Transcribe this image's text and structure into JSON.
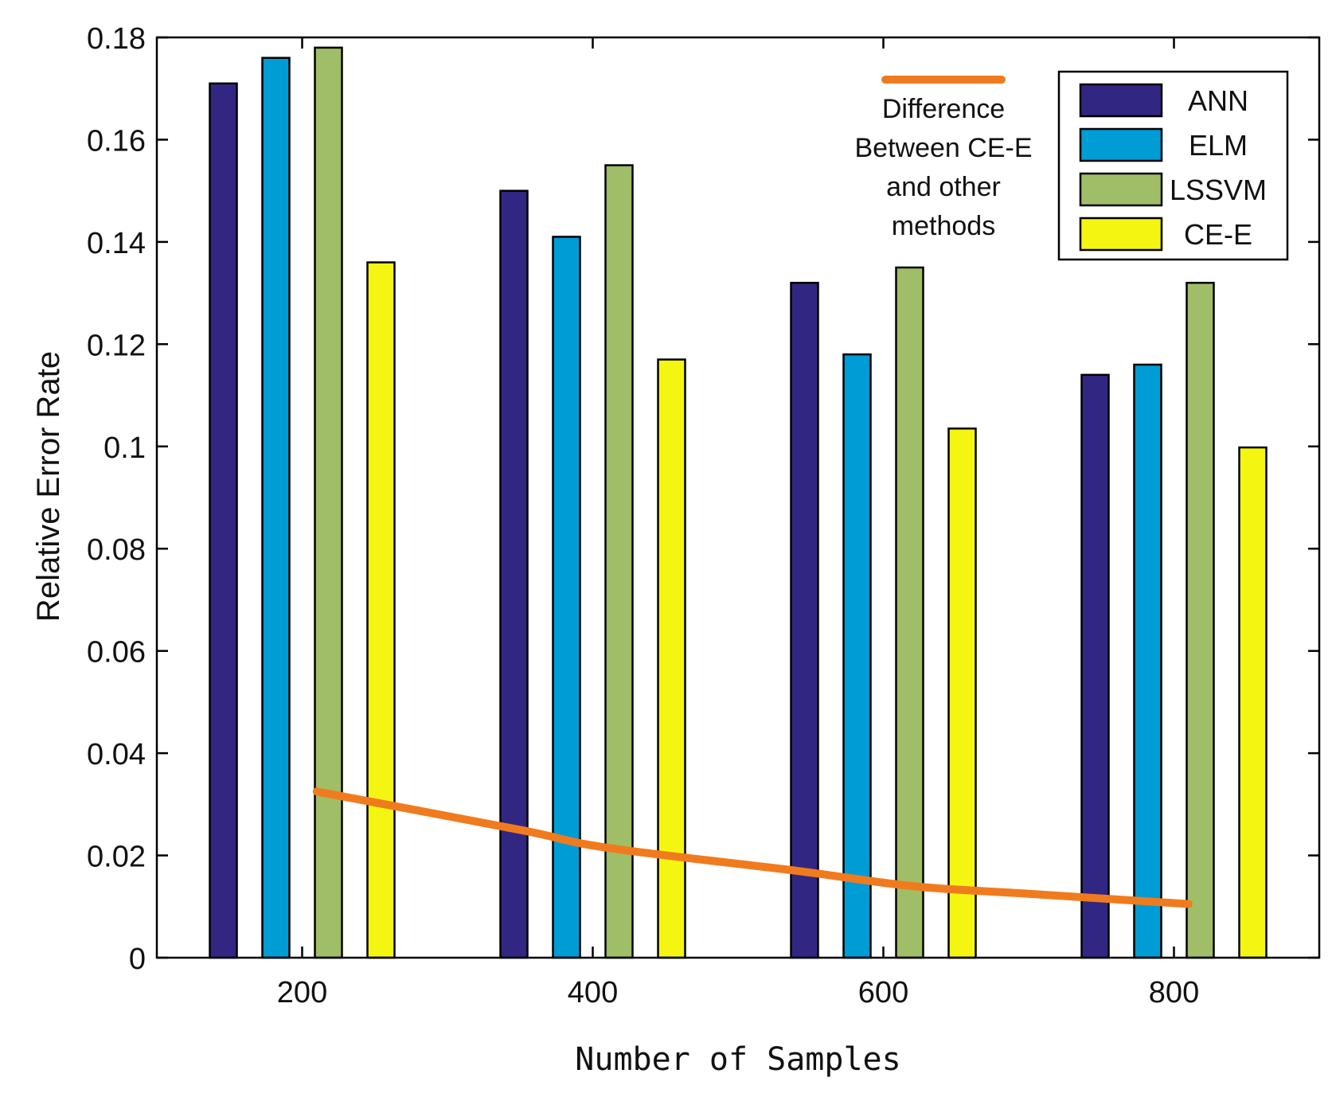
{
  "chart_data": {
    "type": "bar",
    "title": "",
    "xlabel": "Number of Samples",
    "ylabel": "Relative Error Rate",
    "categories": [
      "200",
      "400",
      "600",
      "800"
    ],
    "ylim": [
      0,
      0.18
    ],
    "yticks": [
      0,
      0.02,
      0.04,
      0.06,
      0.08,
      0.1,
      0.12,
      0.14,
      0.16,
      0.18
    ],
    "ytick_labels": [
      "0",
      "0.02",
      "0.04",
      "0.06",
      "0.08",
      "0.1",
      "0.12",
      "0.14",
      "0.16",
      "0.18"
    ],
    "xlim": [
      100,
      900
    ],
    "xticks": [
      200,
      400,
      600,
      800
    ],
    "grid": false,
    "legend_position": "top-right",
    "series": [
      {
        "name": "ANN",
        "color": "#312783",
        "values": [
          0.171,
          0.15,
          0.132,
          0.114
        ]
      },
      {
        "name": "ELM",
        "color": "#009cd5",
        "values": [
          0.176,
          0.141,
          0.118,
          0.116
        ]
      },
      {
        "name": "LSSVM",
        "color": "#9fbe67",
        "values": [
          0.178,
          0.155,
          0.135,
          0.132
        ]
      },
      {
        "name": "CE-E",
        "color": "#f5f512",
        "values": [
          0.136,
          0.117,
          0.1035,
          0.0998
        ]
      }
    ],
    "line_series": {
      "name": "Difference Between CE-E and other methods",
      "color": "#f07b1e",
      "x": [
        210,
        350,
        410,
        540,
        620,
        700,
        810
      ],
      "y": [
        0.0325,
        0.025,
        0.0215,
        0.017,
        0.014,
        0.0125,
        0.0105
      ]
    },
    "annotation": {
      "lines": [
        "Difference",
        "Between CE-E",
        "and other",
        "methods"
      ]
    }
  }
}
